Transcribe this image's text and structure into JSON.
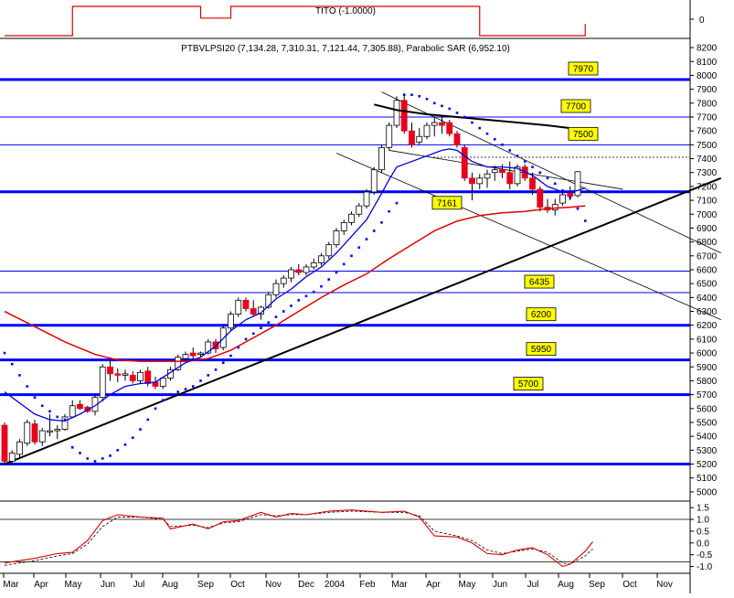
{
  "chart_data": {
    "type": "candlestick",
    "symbol_header": "PTBVLPSI20 (7,134.28, 7,310.31, 7,121.44, 7,305.88), Parabolic SAR (6,952.10)",
    "grid": false,
    "colors": {
      "up": "#ffffff",
      "down": "#e8001c",
      "ma_fast": "#0000dd",
      "ma_slow": "#dd0000",
      "ma_long": "#000000",
      "sar": "#0000ff",
      "level": "#0000ff",
      "label_bg": "#ffff00"
    },
    "months": [
      "Mar",
      "Apr",
      "May",
      "Jun",
      "Jul",
      "Aug",
      "Sep",
      "Oct",
      "Nov",
      "Dec",
      "2004",
      "Feb",
      "Mar",
      "Apr",
      "May",
      "Jun",
      "Jul",
      "Aug",
      "Sep",
      "Oct",
      "Nov"
    ],
    "y_ticks": [
      8200,
      8100,
      8000,
      7900,
      7800,
      7700,
      7600,
      7500,
      7400,
      7300,
      7200,
      7100,
      7000,
      6900,
      6800,
      6700,
      6600,
      6500,
      6400,
      6300,
      6200,
      6100,
      6000,
      5900,
      5800,
      5700,
      5600,
      5500,
      5400,
      5300,
      5200,
      5100,
      5000
    ],
    "ylim": [
      4940,
      8240
    ],
    "candles": [
      [
        5480,
        5500,
        5200,
        5220
      ],
      [
        5220,
        5300,
        5200,
        5280
      ],
      [
        5270,
        5380,
        5250,
        5360
      ],
      [
        5350,
        5520,
        5330,
        5500
      ],
      [
        5490,
        5520,
        5340,
        5360
      ],
      [
        5360,
        5460,
        5330,
        5440
      ],
      [
        5430,
        5560,
        5400,
        5440
      ],
      [
        5440,
        5480,
        5380,
        5450
      ],
      [
        5450,
        5560,
        5440,
        5540
      ],
      [
        5540,
        5660,
        5530,
        5620
      ],
      [
        5630,
        5660,
        5590,
        5600
      ],
      [
        5610,
        5620,
        5570,
        5580
      ],
      [
        5580,
        5700,
        5550,
        5680
      ],
      [
        5680,
        5920,
        5650,
        5900
      ],
      [
        5900,
        5950,
        5800,
        5850
      ],
      [
        5850,
        5890,
        5790,
        5840
      ],
      [
        5840,
        5880,
        5800,
        5850
      ],
      [
        5840,
        5870,
        5780,
        5800
      ],
      [
        5800,
        5880,
        5780,
        5860
      ],
      [
        5870,
        5900,
        5760,
        5780
      ],
      [
        5790,
        5830,
        5740,
        5760
      ],
      [
        5760,
        5830,
        5740,
        5820
      ],
      [
        5820,
        5900,
        5800,
        5880
      ],
      [
        5880,
        5990,
        5870,
        5970
      ],
      [
        5960,
        6010,
        5940,
        5990
      ],
      [
        6000,
        6040,
        5950,
        5980
      ],
      [
        5990,
        6010,
        5970,
        6000
      ],
      [
        6000,
        6100,
        5990,
        6080
      ],
      [
        6080,
        6100,
        6000,
        6030
      ],
      [
        6040,
        6200,
        6020,
        6180
      ],
      [
        6180,
        6300,
        6160,
        6280
      ],
      [
        6280,
        6400,
        6260,
        6380
      ],
      [
        6380,
        6400,
        6300,
        6320
      ],
      [
        6320,
        6380,
        6260,
        6280
      ],
      [
        6280,
        6340,
        6240,
        6330
      ],
      [
        6330,
        6440,
        6320,
        6420
      ],
      [
        6420,
        6530,
        6400,
        6500
      ],
      [
        6500,
        6560,
        6470,
        6540
      ],
      [
        6540,
        6620,
        6510,
        6600
      ],
      [
        6600,
        6640,
        6560,
        6580
      ],
      [
        6580,
        6640,
        6560,
        6620
      ],
      [
        6620,
        6680,
        6600,
        6650
      ],
      [
        6650,
        6720,
        6630,
        6700
      ],
      [
        6700,
        6800,
        6680,
        6780
      ],
      [
        6780,
        6900,
        6760,
        6880
      ],
      [
        6880,
        6960,
        6850,
        6940
      ],
      [
        6940,
        7020,
        6920,
        7000
      ],
      [
        7000,
        7080,
        6980,
        7060
      ],
      [
        7060,
        7180,
        7040,
        7160
      ],
      [
        7160,
        7340,
        7140,
        7320
      ],
      [
        7320,
        7500,
        7300,
        7480
      ],
      [
        7480,
        7660,
        7460,
        7640
      ],
      [
        7640,
        7850,
        7620,
        7820
      ],
      [
        7820,
        7870,
        7580,
        7600
      ],
      [
        7600,
        7660,
        7480,
        7500
      ],
      [
        7520,
        7620,
        7500,
        7560
      ],
      [
        7560,
        7660,
        7540,
        7640
      ],
      [
        7640,
        7700,
        7560,
        7660
      ],
      [
        7660,
        7700,
        7580,
        7640
      ],
      [
        7660,
        7680,
        7560,
        7580
      ],
      [
        7580,
        7600,
        7480,
        7500
      ],
      [
        7480,
        7500,
        7240,
        7260
      ],
      [
        7260,
        7300,
        7100,
        7220
      ],
      [
        7220,
        7290,
        7180,
        7260
      ],
      [
        7260,
        7320,
        7190,
        7290
      ],
      [
        7300,
        7350,
        7240,
        7320
      ],
      [
        7320,
        7360,
        7260,
        7300
      ],
      [
        7300,
        7380,
        7180,
        7220
      ],
      [
        7220,
        7360,
        7200,
        7340
      ],
      [
        7340,
        7360,
        7240,
        7260
      ],
      [
        7260,
        7300,
        7140,
        7180
      ],
      [
        7180,
        7200,
        7020,
        7050
      ],
      [
        7050,
        7110,
        7010,
        7030
      ],
      [
        7030,
        7110,
        6990,
        7070
      ],
      [
        7080,
        7160,
        7060,
        7140
      ],
      [
        7150,
        7200,
        7100,
        7130
      ],
      [
        7134.28,
        7310.31,
        7121.44,
        7305.88
      ]
    ],
    "ma_fast": [
      [
        0,
        5720
      ],
      [
        2,
        5640
      ],
      [
        4,
        5560
      ],
      [
        6,
        5520
      ],
      [
        8,
        5510
      ],
      [
        10,
        5560
      ],
      [
        12,
        5620
      ],
      [
        14,
        5700
      ],
      [
        16,
        5760
      ],
      [
        18,
        5780
      ],
      [
        20,
        5790
      ],
      [
        22,
        5860
      ],
      [
        24,
        5930
      ],
      [
        26,
        5970
      ],
      [
        28,
        6050
      ],
      [
        30,
        6160
      ],
      [
        32,
        6240
      ],
      [
        34,
        6290
      ],
      [
        36,
        6390
      ],
      [
        38,
        6460
      ],
      [
        40,
        6550
      ],
      [
        42,
        6620
      ],
      [
        44,
        6720
      ],
      [
        46,
        6840
      ],
      [
        48,
        6960
      ],
      [
        50,
        7150
      ],
      [
        51,
        7250
      ],
      [
        52,
        7340
      ],
      [
        54,
        7380
      ],
      [
        56,
        7420
      ],
      [
        58,
        7460
      ],
      [
        59,
        7470
      ],
      [
        60,
        7460
      ],
      [
        62,
        7380
      ],
      [
        64,
        7340
      ],
      [
        66,
        7340
      ],
      [
        68,
        7330
      ],
      [
        70,
        7280
      ],
      [
        72,
        7200
      ],
      [
        74,
        7160
      ],
      [
        76,
        7170
      ],
      [
        77,
        7190
      ]
    ],
    "ma_slow": [
      [
        0,
        6300
      ],
      [
        4,
        6190
      ],
      [
        8,
        6080
      ],
      [
        12,
        5990
      ],
      [
        15,
        5950
      ],
      [
        18,
        5940
      ],
      [
        21,
        5940
      ],
      [
        24,
        5940
      ],
      [
        27,
        5960
      ],
      [
        30,
        6020
      ],
      [
        33,
        6110
      ],
      [
        36,
        6200
      ],
      [
        39,
        6300
      ],
      [
        42,
        6400
      ],
      [
        45,
        6490
      ],
      [
        48,
        6570
      ],
      [
        51,
        6680
      ],
      [
        54,
        6780
      ],
      [
        57,
        6880
      ],
      [
        60,
        6950
      ],
      [
        63,
        6990
      ],
      [
        66,
        7010
      ],
      [
        69,
        7020
      ],
      [
        72,
        7040
      ],
      [
        75,
        7050
      ],
      [
        77,
        7060
      ]
    ],
    "ma_long": [
      [
        49,
        7790
      ],
      [
        52,
        7750
      ],
      [
        56,
        7720
      ],
      [
        60,
        7700
      ],
      [
        64,
        7680
      ],
      [
        68,
        7660
      ],
      [
        72,
        7640
      ],
      [
        75,
        7620
      ],
      [
        77,
        7600
      ]
    ],
    "sar": [
      [
        0,
        6000
      ],
      [
        1,
        5920
      ],
      [
        2,
        5840
      ],
      [
        3,
        5760
      ],
      [
        4,
        5680
      ],
      [
        5,
        5620
      ],
      [
        6,
        5580
      ],
      [
        7,
        5540
      ],
      [
        8,
        5520
      ],
      [
        9,
        5320
      ],
      [
        10,
        5280
      ],
      [
        11,
        5240
      ],
      [
        12,
        5220
      ],
      [
        13,
        5240
      ],
      [
        14,
        5260
      ],
      [
        15,
        5300
      ],
      [
        16,
        5340
      ],
      [
        17,
        5390
      ],
      [
        18,
        5450
      ],
      [
        19,
        5520
      ],
      [
        20,
        5600
      ],
      [
        21,
        5660
      ],
      [
        22,
        5700
      ],
      [
        23,
        5720
      ],
      [
        24,
        5740
      ],
      [
        25,
        5760
      ],
      [
        26,
        5800
      ],
      [
        27,
        5840
      ],
      [
        28,
        5880
      ],
      [
        29,
        5930
      ],
      [
        30,
        5980
      ],
      [
        31,
        6040
      ],
      [
        32,
        6100
      ],
      [
        33,
        6140
      ],
      [
        34,
        6180
      ],
      [
        35,
        6220
      ],
      [
        36,
        6260
      ],
      [
        37,
        6300
      ],
      [
        38,
        6340
      ],
      [
        39,
        6380
      ],
      [
        40,
        6410
      ],
      [
        41,
        6440
      ],
      [
        42,
        6480
      ],
      [
        43,
        6530
      ],
      [
        44,
        6580
      ],
      [
        45,
        6640
      ],
      [
        46,
        6700
      ],
      [
        47,
        6760
      ],
      [
        48,
        6820
      ],
      [
        49,
        6880
      ],
      [
        50,
        6940
      ],
      [
        51,
        7020
      ],
      [
        52,
        7080
      ],
      [
        53,
        7860
      ],
      [
        54,
        7860
      ],
      [
        55,
        7850
      ],
      [
        56,
        7830
      ],
      [
        57,
        7800
      ],
      [
        58,
        7780
      ],
      [
        59,
        7760
      ],
      [
        60,
        7730
      ],
      [
        61,
        7700
      ],
      [
        62,
        7660
      ],
      [
        63,
        7620
      ],
      [
        64,
        7580
      ],
      [
        65,
        7540
      ],
      [
        66,
        7500
      ],
      [
        67,
        7460
      ],
      [
        68,
        7420
      ],
      [
        69,
        7380
      ],
      [
        70,
        7340
      ],
      [
        71,
        7300
      ],
      [
        72,
        7260
      ],
      [
        73,
        7220
      ],
      [
        74,
        7170
      ],
      [
        75,
        7120
      ],
      [
        76,
        7040
      ],
      [
        77,
        6952.1
      ]
    ],
    "trend_lines": [
      [
        [
          0,
          5200
        ],
        [
          95,
          7260
        ]
      ],
      [
        [
          44,
          7440
        ],
        [
          95,
          6240
        ]
      ],
      [
        [
          50,
          7880
        ],
        [
          95,
          6720
        ]
      ],
      [
        [
          51,
          7460
        ],
        [
          82,
          7180
        ]
      ]
    ],
    "levels": [
      {
        "value": 7970,
        "label": "7970",
        "bold": true
      },
      {
        "value": 7700,
        "label": "7700",
        "bold": false
      },
      {
        "value": 7500,
        "label": "7500",
        "bold": false
      },
      {
        "value": 7161,
        "label": "7161",
        "bold": true
      },
      {
        "value": 6590,
        "label": "",
        "bold": false
      },
      {
        "value": 6435,
        "label": "6435",
        "bold": false
      },
      {
        "value": 6200,
        "label": "6200",
        "bold": true
      },
      {
        "value": 5950,
        "label": "5950",
        "bold": true
      },
      {
        "value": 5700,
        "label": "5700",
        "bold": true
      },
      {
        "value": 5200,
        "label": "",
        "bold": true
      }
    ],
    "dashed_level": 7410,
    "top_panel": {
      "title": "TITO (-1.0000)",
      "y_ticks": [
        "0"
      ],
      "steps": [
        [
          0,
          0
        ],
        [
          9,
          1
        ],
        [
          24,
          1
        ],
        [
          26,
          0.6
        ],
        [
          30,
          1
        ],
        [
          57,
          1
        ],
        [
          63,
          0
        ],
        [
          75,
          0
        ],
        [
          77,
          0.4
        ]
      ]
    },
    "osc_panel": {
      "y_ticks": [
        "1.5",
        "1.0",
        "0.5",
        "0.0",
        "-0.5",
        "-1.0"
      ],
      "ylim": [
        -1.25,
        1.7
      ],
      "h_lines": [
        1.0,
        -0.8
      ],
      "main": [
        [
          0,
          -0.85
        ],
        [
          4,
          -0.65
        ],
        [
          7,
          -0.45
        ],
        [
          9,
          -0.4
        ],
        [
          11,
          0.1
        ],
        [
          13,
          0.95
        ],
        [
          15,
          1.2
        ],
        [
          18,
          1.1
        ],
        [
          21,
          1.05
        ],
        [
          22,
          0.6
        ],
        [
          25,
          0.8
        ],
        [
          27,
          0.6
        ],
        [
          29,
          0.9
        ],
        [
          31,
          0.95
        ],
        [
          34,
          1.3
        ],
        [
          36,
          1.1
        ],
        [
          38,
          1.25
        ],
        [
          40,
          1.2
        ],
        [
          43,
          1.35
        ],
        [
          46,
          1.4
        ],
        [
          50,
          1.3
        ],
        [
          53,
          1.35
        ],
        [
          55,
          1.1
        ],
        [
          57,
          0.3
        ],
        [
          60,
          0.25
        ],
        [
          62,
          0.0
        ],
        [
          64,
          -0.45
        ],
        [
          66,
          -0.5
        ],
        [
          68,
          -0.3
        ],
        [
          70,
          -0.2
        ],
        [
          72,
          -0.5
        ],
        [
          74,
          -1.0
        ],
        [
          75,
          -0.9
        ],
        [
          77,
          -0.35
        ],
        [
          78,
          0.05
        ]
      ],
      "signal": [
        [
          0,
          -0.95
        ],
        [
          4,
          -0.75
        ],
        [
          7,
          -0.55
        ],
        [
          9,
          -0.45
        ],
        [
          11,
          -0.05
        ],
        [
          13,
          0.7
        ],
        [
          15,
          1.1
        ],
        [
          18,
          1.1
        ],
        [
          21,
          1.0
        ],
        [
          22,
          0.7
        ],
        [
          25,
          0.75
        ],
        [
          27,
          0.65
        ],
        [
          29,
          0.85
        ],
        [
          31,
          0.9
        ],
        [
          34,
          1.2
        ],
        [
          36,
          1.15
        ],
        [
          38,
          1.2
        ],
        [
          40,
          1.2
        ],
        [
          43,
          1.3
        ],
        [
          46,
          1.35
        ],
        [
          50,
          1.3
        ],
        [
          53,
          1.3
        ],
        [
          55,
          1.15
        ],
        [
          57,
          0.5
        ],
        [
          60,
          0.3
        ],
        [
          62,
          0.1
        ],
        [
          64,
          -0.3
        ],
        [
          66,
          -0.45
        ],
        [
          68,
          -0.35
        ],
        [
          70,
          -0.25
        ],
        [
          72,
          -0.4
        ],
        [
          74,
          -0.85
        ],
        [
          75,
          -0.9
        ],
        [
          77,
          -0.55
        ],
        [
          78,
          -0.25
        ]
      ]
    }
  }
}
